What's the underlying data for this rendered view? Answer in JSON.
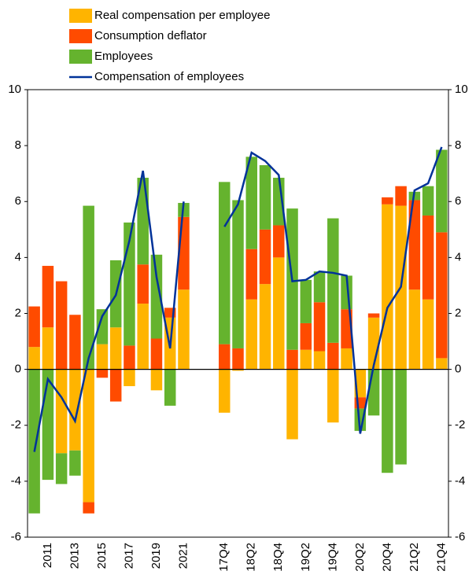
{
  "chart_data": {
    "type": "bar",
    "categories": [
      "2010",
      "2011",
      "2012",
      "2013",
      "2014",
      "2015",
      "2016",
      "2017",
      "2018",
      "2019",
      "2020",
      "2021",
      null,
      null,
      "17Q4",
      "18Q1",
      "18Q2",
      "18Q3",
      "18Q4",
      "19Q1",
      "19Q2",
      "19Q3",
      "19Q4",
      "20Q1",
      "20Q2",
      "20Q3",
      "20Q4",
      "21Q1",
      "21Q2",
      "21Q3",
      "21Q4"
    ],
    "category_labels": [
      null,
      "2011",
      null,
      "2013",
      null,
      "2015",
      null,
      "2017",
      null,
      "2019",
      null,
      "2021",
      null,
      null,
      "17Q4",
      null,
      "18Q2",
      null,
      "18Q4",
      null,
      "19Q2",
      null,
      "19Q4",
      null,
      "20Q2",
      null,
      "20Q4",
      null,
      "21Q2",
      null,
      "21Q4"
    ],
    "series": [
      {
        "name": "Real compensation per employee",
        "color": "#ffb400",
        "values": [
          0.8,
          1.5,
          -3.0,
          -2.9,
          -4.75,
          0.9,
          1.5,
          -0.6,
          2.35,
          -0.75,
          1.85,
          2.85,
          null,
          null,
          -1.55,
          -0.05,
          2.5,
          3.05,
          4.0,
          -2.5,
          0.7,
          0.65,
          -1.9,
          0.75,
          -1.0,
          1.85,
          5.9,
          5.85,
          2.85,
          2.5,
          0.4
        ]
      },
      {
        "name": "Consumption deflator",
        "color": "#ff4b00",
        "values": [
          1.45,
          2.2,
          3.15,
          1.95,
          -0.4,
          -0.3,
          -1.15,
          0.85,
          1.4,
          1.1,
          0.35,
          2.6,
          null,
          null,
          0.9,
          0.75,
          1.8,
          1.95,
          1.15,
          0.7,
          0.95,
          1.75,
          0.95,
          1.4,
          -0.4,
          0.15,
          0.25,
          0.7,
          3.2,
          3.0,
          4.5
        ]
      },
      {
        "name": "Employees",
        "color": "#65b32e",
        "values": [
          -5.15,
          -3.95,
          -1.1,
          -0.9,
          5.85,
          1.25,
          2.4,
          4.4,
          3.1,
          3.0,
          -1.3,
          0.5,
          null,
          null,
          5.8,
          5.3,
          3.3,
          2.3,
          1.7,
          5.05,
          1.55,
          1.1,
          4.45,
          1.2,
          -0.8,
          -1.65,
          -3.7,
          -3.4,
          0.3,
          1.05,
          2.95
        ]
      },
      {
        "name": "Compensation of employees",
        "type": "line",
        "color": "#003299",
        "values": [
          -2.95,
          -0.35,
          -1.0,
          -1.85,
          0.4,
          1.9,
          2.65,
          4.6,
          7.1,
          3.3,
          0.75,
          6.0,
          null,
          null,
          5.1,
          5.9,
          7.75,
          7.45,
          6.95,
          3.15,
          3.2,
          3.5,
          3.45,
          3.35,
          -2.3,
          0.15,
          2.2,
          2.95,
          6.4,
          6.65,
          7.95
        ]
      }
    ],
    "ylim": [
      -6,
      10
    ],
    "yticks": [
      -6,
      -4,
      -2,
      0,
      2,
      4,
      6,
      8,
      10
    ]
  }
}
